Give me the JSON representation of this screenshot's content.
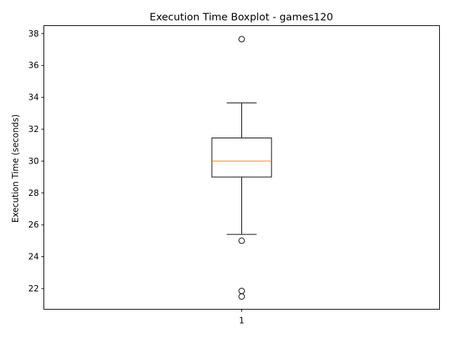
{
  "chart_data": {
    "type": "boxplot",
    "title": "Execution Time Boxplot - games120",
    "xlabel": "",
    "ylabel": "Execution Time (seconds)",
    "categories": [
      "1"
    ],
    "ylim": [
      20.7,
      38.5
    ],
    "yticks": [
      22,
      24,
      26,
      28,
      30,
      32,
      34,
      36,
      38
    ],
    "boxes": [
      {
        "category": "1",
        "whisker_low": 25.4,
        "q1": 29.0,
        "median": 30.0,
        "q3": 31.45,
        "whisker_high": 33.65,
        "outliers": [
          37.65,
          25.0,
          21.85,
          21.5
        ]
      }
    ],
    "grid": false,
    "colors": {
      "box": "#000000",
      "median": "#ff7f0e",
      "outlier": "#000000"
    }
  }
}
